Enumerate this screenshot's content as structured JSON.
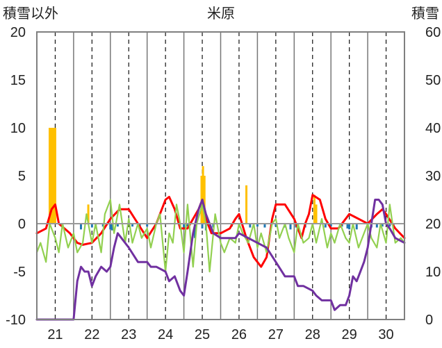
{
  "chart_data": {
    "type": "line",
    "title": "米原",
    "left_axis_label": "積雪以外",
    "right_axis_label": "積雪",
    "left_ylim": [
      -10,
      20
    ],
    "left_yticks": [
      -10,
      -5,
      0,
      5,
      10,
      15,
      20
    ],
    "right_ylim": [
      0,
      60
    ],
    "right_yticks": [
      0,
      10,
      20,
      30,
      40,
      50,
      60
    ],
    "xlim": [
      20.5,
      30.5
    ],
    "x_tick_labels": [
      "21",
      "22",
      "23",
      "24",
      "25",
      "26",
      "27",
      "28",
      "29",
      "30"
    ],
    "grid": true,
    "legend": "none",
    "colors": {
      "red": "#ff0000",
      "green": "#92d050",
      "purple": "#7030a0",
      "orange": "#ffc000",
      "blue": "#1f77b4",
      "axis_zero": "#999999",
      "frame": "#7f7f7f"
    },
    "series": [
      {
        "color": "#ff0000",
        "axis": "left",
        "x": [
          20.5,
          20.75,
          20.9,
          21.0,
          21.1,
          21.25,
          21.4,
          21.6,
          21.75,
          22.0,
          22.25,
          22.5,
          22.75,
          23.0,
          23.25,
          23.5,
          23.75,
          24.0,
          24.1,
          24.25,
          24.4,
          24.6,
          24.75,
          24.9,
          25.0,
          25.1,
          25.25,
          25.5,
          25.75,
          25.9,
          26.0,
          26.2,
          26.4,
          26.6,
          26.75,
          26.9,
          27.0,
          27.25,
          27.5,
          27.7,
          27.8,
          27.9,
          28.0,
          28.2,
          28.35,
          28.5,
          28.7,
          28.9,
          29.0,
          29.25,
          29.5,
          29.75,
          29.9,
          30.0,
          30.25,
          30.5
        ],
        "y": [
          -1,
          -0.5,
          1.5,
          2,
          0,
          -0.5,
          -1,
          -2,
          -2.2,
          -2,
          -1,
          0.5,
          1.5,
          1.5,
          0,
          -1.5,
          0,
          2.5,
          2.8,
          1.5,
          -0.5,
          -0.5,
          0.5,
          1.5,
          2.5,
          0.5,
          -1,
          -1,
          -0.5,
          0.5,
          1,
          -1.5,
          -3.5,
          -4.5,
          -3.5,
          0.5,
          2,
          2,
          0.5,
          -1.5,
          0,
          1,
          3,
          2.5,
          0.5,
          -0.5,
          -0.5,
          0.5,
          1,
          0.5,
          0,
          1,
          1.5,
          1,
          -0.5,
          -1.5
        ]
      },
      {
        "color": "#92d050",
        "axis": "left",
        "x": [
          20.5,
          20.6,
          20.75,
          20.85,
          21.0,
          21.1,
          21.2,
          21.35,
          21.5,
          21.6,
          21.75,
          21.85,
          22.0,
          22.1,
          22.25,
          22.35,
          22.5,
          22.6,
          22.75,
          22.9,
          23.0,
          23.1,
          23.25,
          23.35,
          23.5,
          23.6,
          23.75,
          23.85,
          24.0,
          24.1,
          24.2,
          24.3,
          24.4,
          24.5,
          24.6,
          24.75,
          24.85,
          25.0,
          25.1,
          25.2,
          25.35,
          25.5,
          25.6,
          25.75,
          25.9,
          26.0,
          26.1,
          26.25,
          26.4,
          26.5,
          26.6,
          26.75,
          26.9,
          27.0,
          27.1,
          27.25,
          27.35,
          27.5,
          27.6,
          27.75,
          27.9,
          28.0,
          28.1,
          28.25,
          28.4,
          28.5,
          28.6,
          28.75,
          28.9,
          29.0,
          29.1,
          29.25,
          29.4,
          29.5,
          29.6,
          29.75,
          29.85,
          30.0,
          30.1,
          30.25,
          30.4,
          30.5
        ],
        "y": [
          -3,
          -2,
          -4,
          0,
          -1.5,
          -3,
          0,
          -2.5,
          -1,
          -3,
          -2,
          1,
          -2,
          0,
          -3,
          1,
          2.5,
          -1,
          2,
          -2,
          0.5,
          -2,
          0,
          -1.5,
          -0.5,
          -2.5,
          0,
          1,
          -5,
          -1,
          -2,
          2,
          0,
          -3,
          2,
          -4.5,
          0,
          2,
          0,
          -5,
          1,
          -2,
          -3,
          -1.5,
          -2,
          0,
          -1,
          -2,
          0,
          -2.5,
          -1,
          -3,
          0,
          0.5,
          -1.5,
          0,
          -1.5,
          -3,
          0,
          -2,
          -1.5,
          0,
          -2,
          0.5,
          -2.5,
          -1,
          -2,
          0,
          -1.5,
          -2,
          0,
          -2.5,
          -1,
          0,
          -1.5,
          -2.5,
          0,
          -2,
          2,
          -2,
          -1.5,
          -2
        ]
      },
      {
        "color": "#7030a0",
        "axis": "right",
        "x": [
          20.5,
          21.5,
          21.6,
          21.7,
          21.8,
          21.9,
          22.0,
          22.1,
          22.25,
          22.4,
          22.5,
          22.6,
          22.7,
          22.8,
          23.0,
          23.25,
          23.5,
          23.6,
          23.75,
          24.0,
          24.1,
          24.25,
          24.4,
          24.5,
          24.6,
          24.75,
          24.9,
          25.0,
          25.1,
          25.2,
          25.3,
          25.5,
          25.75,
          25.9,
          26.0,
          26.25,
          26.5,
          26.75,
          27.0,
          27.25,
          27.5,
          27.6,
          27.75,
          28.0,
          28.1,
          28.25,
          28.5,
          28.6,
          28.75,
          28.9,
          29.0,
          29.1,
          29.2,
          29.25,
          29.4,
          29.5,
          29.6,
          29.7,
          29.8,
          29.9,
          30.0,
          30.1,
          30.25,
          30.5
        ],
        "y": [
          0,
          0,
          8,
          11,
          10,
          10,
          7,
          9,
          11,
          10,
          11,
          15,
          18,
          17,
          15,
          12,
          12,
          11,
          11,
          10,
          8,
          9,
          6,
          5,
          10,
          18,
          23,
          25,
          22,
          20,
          18,
          17,
          17,
          17,
          18,
          17,
          16,
          15,
          12,
          9,
          9,
          7,
          7,
          6,
          5,
          4,
          4,
          2,
          3,
          3,
          5,
          9,
          8,
          9,
          12,
          15,
          20,
          25,
          25,
          24,
          20,
          19,
          17,
          16
        ]
      }
    ],
    "bars": [
      {
        "color": "#ffc000",
        "axis": "left",
        "x": [
          20.85,
          20.9,
          20.95,
          21.0,
          21.9,
          24.98,
          25.02,
          25.06,
          26.2,
          28.05,
          28.1
        ],
        "y": [
          10,
          10,
          10,
          10,
          2,
          5,
          6,
          5,
          4,
          3,
          2
        ]
      },
      {
        "color": "#1f77b4",
        "axis": "left",
        "x": [
          21.7,
          22.0,
          22.1,
          22.3,
          22.5,
          22.55,
          22.7,
          23.1,
          23.3,
          23.5,
          24.5,
          24.6,
          24.8,
          25.0,
          25.1,
          25.3,
          25.8,
          26.0,
          26.3,
          26.5,
          26.7,
          27.0,
          27.25,
          27.4,
          27.55,
          27.8,
          28.35,
          28.5,
          28.8,
          28.95,
          29.0,
          29.1,
          29.2,
          29.6,
          29.75,
          29.9,
          30.1,
          30.2
        ],
        "y": [
          -0.6,
          -0.4,
          -0.5,
          -0.3,
          -0.6,
          -0.7,
          -0.3,
          -0.3,
          -0.3,
          -0.3,
          -0.5,
          -0.3,
          -1.5,
          -0.5,
          -0.7,
          -0.4,
          -0.3,
          -0.4,
          -0.4,
          -0.3,
          -0.4,
          -0.3,
          -0.4,
          -0.6,
          -0.4,
          -0.4,
          -0.4,
          -0.3,
          -0.3,
          -0.5,
          -0.6,
          -0.4,
          -0.6,
          -0.4,
          -0.4,
          -0.3,
          -0.3,
          -0.3
        ]
      }
    ]
  }
}
